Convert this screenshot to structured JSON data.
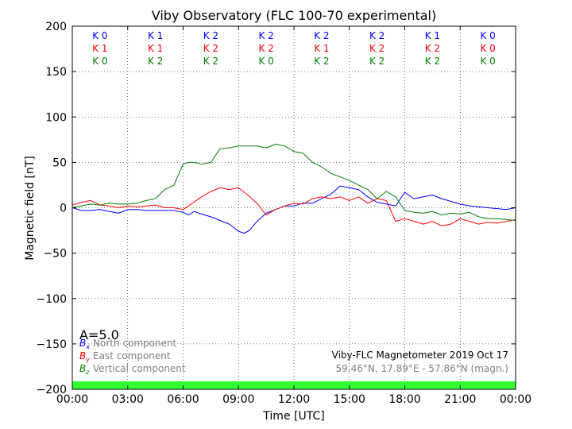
{
  "chart_data": {
    "type": "line",
    "title": "Viby Observatory (FLC 100-70 experimental)",
    "xlabel": "Time [UTC]",
    "ylabel": "Magnetic field [nT]",
    "xlim": [
      0,
      24
    ],
    "ylim": [
      -200,
      200
    ],
    "grid": true,
    "x_tick_labels": [
      "00:00",
      "03:00",
      "06:00",
      "09:00",
      "12:00",
      "15:00",
      "18:00",
      "21:00",
      "00:00"
    ],
    "y_tick_labels": [
      "200",
      "150",
      "100",
      "50",
      "0",
      "−50",
      "−100",
      "−150",
      "−200"
    ],
    "x_ticks": [
      0,
      3,
      6,
      9,
      12,
      15,
      18,
      21,
      24
    ],
    "y_ticks": [
      200,
      150,
      100,
      50,
      0,
      -50,
      -100,
      -150,
      -200
    ],
    "k_index": {
      "blocks": [
        "00-03",
        "03-06",
        "06-09",
        "09-12",
        "12-15",
        "15-18",
        "18-21",
        "21-24"
      ],
      "rows": [
        {
          "color": "#0000ff",
          "labels": [
            "K 0",
            "K 1",
            "K 2",
            "K 2",
            "K 2",
            "K 2",
            "K 1",
            "K 0"
          ]
        },
        {
          "color": "#ff0000",
          "labels": [
            "K 1",
            "K 1",
            "K 2",
            "K 2",
            "K 1",
            "K 2",
            "K 2",
            "K 0"
          ]
        },
        {
          "color": "#008000",
          "labels": [
            "K 0",
            "K 2",
            "K 2",
            "K 0",
            "K 2",
            "K 2",
            "K 2",
            "K 0"
          ]
        }
      ]
    },
    "a_index_label": "A=5.0",
    "legend": {
      "placement": "lower-left",
      "entries": [
        {
          "symbol": "B",
          "sub": "x",
          "text": "North component",
          "color": "#0000ff"
        },
        {
          "symbol": "B",
          "sub": "y",
          "text": "East component",
          "color": "#ff0000"
        },
        {
          "symbol": "B",
          "sub": "z",
          "text": "Vertical component",
          "color": "#008000"
        }
      ]
    },
    "annotation": {
      "line1": "Viby-FLC Magnetometer 2019 Oct 17",
      "line2": "59.46°N, 17.89°E - 57.86°N (magn.)"
    },
    "status_bar_color": "#33ff33",
    "series": [
      {
        "name": "North component",
        "color": "#0000ff",
        "x": [
          0,
          0.5,
          1,
          1.5,
          2,
          2.5,
          3,
          3.5,
          4,
          4.5,
          5,
          5.5,
          6,
          6.3,
          6.6,
          7,
          7.5,
          8,
          8.5,
          9,
          9.3,
          9.6,
          10,
          10.5,
          11,
          11.5,
          12,
          12.5,
          13,
          13.5,
          14,
          14.5,
          15,
          15.5,
          16,
          16.5,
          17,
          17.5,
          18,
          18.5,
          19,
          19.5,
          20,
          20.5,
          21,
          21.5,
          22,
          22.5,
          23,
          23.5,
          24
        ],
        "values": [
          0,
          -3,
          -3,
          -2,
          -4,
          -6,
          -2,
          -2,
          -3,
          -3,
          -3,
          -3,
          -5,
          -8,
          -4,
          -7,
          -10,
          -14,
          -18,
          -26,
          -28,
          -25,
          -15,
          -6,
          -2,
          2,
          2,
          5,
          5,
          10,
          15,
          24,
          22,
          20,
          12,
          6,
          4,
          2,
          17,
          10,
          12,
          14,
          10,
          7,
          4,
          2,
          1,
          0,
          -1,
          -2,
          0
        ]
      },
      {
        "name": "East component",
        "color": "#ff0000",
        "x": [
          0,
          0.5,
          1,
          1.5,
          2,
          2.5,
          3,
          3.5,
          4,
          4.5,
          5,
          5.5,
          6,
          6.5,
          7,
          7.5,
          8,
          8.5,
          9,
          9.5,
          10,
          10.5,
          11,
          11.5,
          12,
          12.5,
          13,
          13.5,
          14,
          14.5,
          15,
          15.5,
          16,
          16.5,
          17,
          17.5,
          18,
          18.5,
          19,
          19.5,
          20,
          20.5,
          21,
          21.5,
          22,
          22.5,
          23,
          23.5,
          24
        ],
        "values": [
          3,
          6,
          8,
          3,
          2,
          0,
          2,
          1,
          2,
          3,
          0,
          0,
          -2,
          5,
          12,
          18,
          22,
          20,
          22,
          14,
          5,
          -8,
          -2,
          2,
          5,
          4,
          10,
          12,
          10,
          12,
          8,
          12,
          5,
          10,
          8,
          -15,
          -12,
          -15,
          -18,
          -15,
          -20,
          -18,
          -12,
          -15,
          -18,
          -16,
          -17,
          -15,
          -13
        ]
      },
      {
        "name": "Vertical component",
        "color": "#008000",
        "x": [
          0,
          0.5,
          1,
          1.5,
          2,
          2.5,
          3,
          3.5,
          4,
          4.5,
          5,
          5.5,
          6,
          6.3,
          6.6,
          7,
          7.5,
          8,
          8.5,
          9,
          9.5,
          10,
          10.5,
          11,
          11.5,
          12,
          12.5,
          13,
          13.5,
          14,
          14.5,
          15,
          15.5,
          16,
          16.5,
          17,
          17.5,
          18,
          18.5,
          19,
          19.5,
          20,
          20.5,
          21,
          21.5,
          22,
          22.5,
          23,
          23.5,
          24
        ],
        "values": [
          0,
          2,
          4,
          3,
          5,
          4,
          4,
          5,
          8,
          10,
          20,
          25,
          48,
          50,
          50,
          48,
          50,
          65,
          66,
          68,
          68,
          68,
          66,
          70,
          68,
          62,
          60,
          50,
          45,
          38,
          34,
          30,
          25,
          20,
          10,
          18,
          12,
          -3,
          -5,
          -6,
          -4,
          -8,
          -6,
          -7,
          -5,
          -10,
          -12,
          -12,
          -13,
          -14
        ]
      }
    ]
  }
}
